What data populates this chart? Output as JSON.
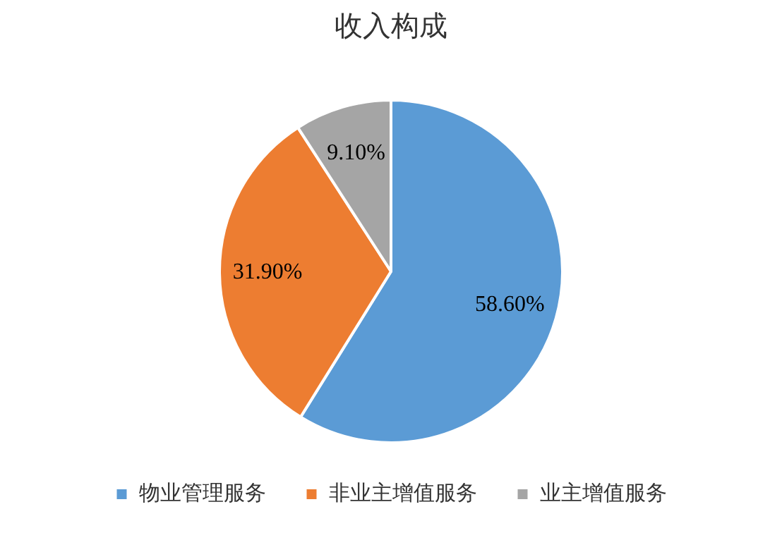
{
  "chart_data": {
    "type": "pie",
    "title": "收入构成",
    "categories": [
      "物业管理服务",
      "非业主增值服务",
      "业主增值服务"
    ],
    "values": [
      58.6,
      31.9,
      9.1
    ],
    "colors": [
      "#5b9bd5",
      "#ed7d31",
      "#a5a5a5"
    ],
    "value_labels": [
      "58.60%",
      "31.90%",
      "9.10%"
    ],
    "legend": "bottom"
  }
}
